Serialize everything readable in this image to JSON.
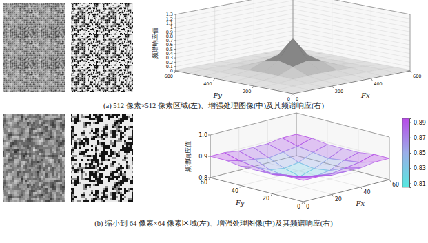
{
  "chart_data": [
    {
      "type": "surface",
      "title": "(a) 512 像素×512 像素区域(左)、增强处理图像(中)及其频谱响应(右)",
      "xlabel": "Fx",
      "ylabel": "Fy",
      "zlabel": "频谱响应值",
      "x": [
        0,
        75,
        150,
        225,
        300,
        375,
        450,
        525,
        600
      ],
      "y": [
        0,
        75,
        150,
        225,
        300,
        375,
        450,
        525,
        600
      ],
      "z": [
        [
          0.02,
          0.02,
          0.02,
          0.02,
          0.02,
          0.02,
          0.02,
          0.02,
          0.02
        ],
        [
          0.02,
          0.04,
          0.04,
          0.04,
          0.04,
          0.04,
          0.04,
          0.04,
          0.02
        ],
        [
          0.02,
          0.04,
          0.07,
          0.08,
          0.09,
          0.08,
          0.07,
          0.04,
          0.02
        ],
        [
          0.02,
          0.04,
          0.08,
          0.22,
          0.3,
          0.22,
          0.08,
          0.04,
          0.02
        ],
        [
          0.02,
          0.04,
          0.09,
          0.3,
          0.75,
          0.3,
          0.09,
          0.04,
          0.02
        ],
        [
          0.02,
          0.04,
          0.08,
          0.22,
          0.3,
          0.22,
          0.08,
          0.04,
          0.02
        ],
        [
          0.02,
          0.04,
          0.07,
          0.08,
          0.09,
          0.08,
          0.07,
          0.04,
          0.02
        ],
        [
          0.02,
          0.04,
          0.04,
          0.04,
          0.04,
          0.04,
          0.04,
          0.04,
          0.02
        ],
        [
          0.02,
          0.02,
          0.02,
          0.02,
          0.02,
          0.02,
          0.02,
          0.02,
          0.02
        ]
      ],
      "xlim": [
        0,
        600
      ],
      "ylim": [
        0,
        600
      ],
      "zlim": [
        0,
        1.3
      ],
      "xticks": [
        0,
        200,
        400,
        600
      ],
      "yticks": [
        0,
        200,
        400,
        600
      ],
      "zticks": [
        0,
        0.1,
        0.2,
        0.3,
        0.4,
        0.5,
        0.6,
        0.7,
        0.8,
        0.9,
        1,
        1.1,
        1.2,
        1.3
      ],
      "color": "#2e2e2e",
      "grid": true
    },
    {
      "type": "mesh",
      "title": "(b) 缩小到 64 像素×64 像素区域(左)、增强处理图像(中)及其频谱响应(右)",
      "xlabel": "Fx",
      "ylabel": "Fy",
      "zlabel": "频谱响应值",
      "x": [
        0,
        10,
        20,
        30,
        40,
        50,
        60
      ],
      "y": [
        0,
        10,
        20,
        30,
        40,
        50,
        60
      ],
      "z": [
        [
          0.9,
          0.9,
          0.89,
          0.89,
          0.89,
          0.9,
          0.9
        ],
        [
          0.9,
          0.88,
          0.87,
          0.86,
          0.87,
          0.88,
          0.9
        ],
        [
          0.89,
          0.87,
          0.84,
          0.83,
          0.84,
          0.87,
          0.89
        ],
        [
          0.89,
          0.86,
          0.83,
          0.81,
          0.83,
          0.86,
          0.89
        ],
        [
          0.89,
          0.87,
          0.84,
          0.83,
          0.84,
          0.87,
          0.89
        ],
        [
          0.9,
          0.88,
          0.87,
          0.86,
          0.87,
          0.88,
          0.9
        ],
        [
          0.9,
          0.9,
          0.89,
          0.89,
          0.89,
          0.9,
          0.9
        ]
      ],
      "xlim": [
        0,
        60
      ],
      "ylim": [
        0,
        60
      ],
      "zlim": [
        0.8,
        1.0
      ],
      "xticks": [
        0,
        20,
        40,
        60
      ],
      "yticks": [
        0,
        20,
        40,
        60
      ],
      "zticks": [
        0.8,
        0.9,
        {
          "value": 1,
          "label": "1.0"
        }
      ],
      "colorbar": {
        "range": [
          0.805,
          0.895
        ],
        "ticks": [
          0.81,
          0.83,
          0.85,
          0.87,
          0.89
        ],
        "colors": [
          "#56e8e0",
          "#9aaee8",
          "#b84ae8"
        ]
      },
      "grid": true
    }
  ]
}
